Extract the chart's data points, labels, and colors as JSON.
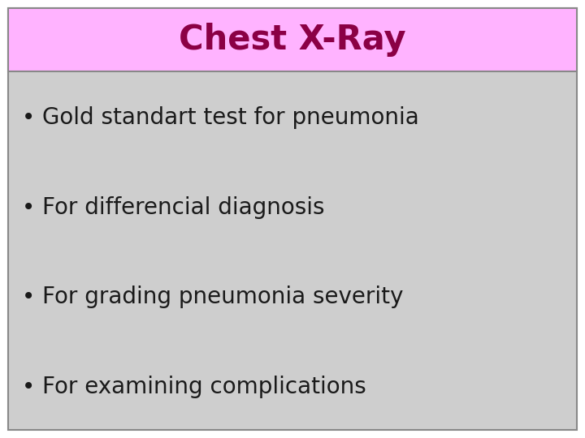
{
  "title": "Chest X-Ray",
  "title_color": "#8B0045",
  "title_bg_color": "#FFB3FF",
  "title_font_size": 30,
  "bullet_points": [
    "Gold standart test for pneumonia",
    "For differencial diagnosis",
    "For grading pneumonia severity",
    "For examining complications"
  ],
  "bullet_color": "#1a1a1a",
  "bullet_font_size": 20,
  "body_bg_color": "#CECECE",
  "outer_bg_color": "#FFFFFF",
  "border_color": "#888888",
  "fig_width": 7.2,
  "fig_height": 5.4,
  "dpi": 100
}
